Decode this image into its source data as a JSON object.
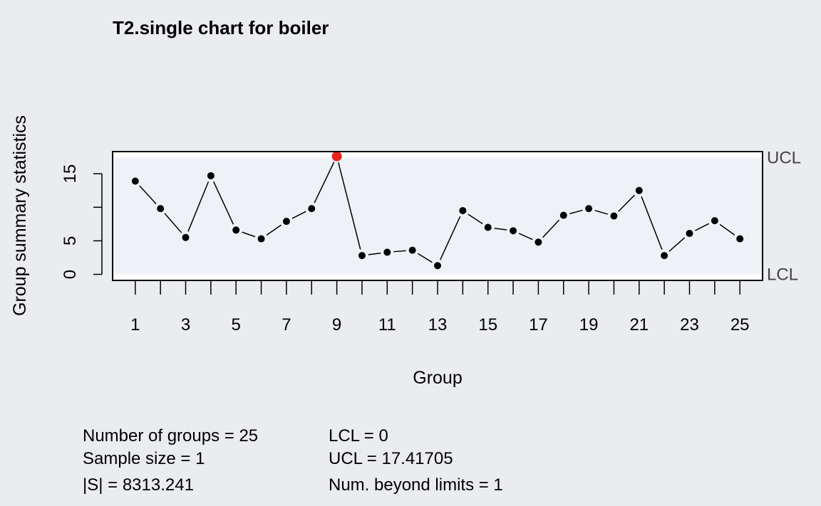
{
  "chart_data": {
    "type": "line",
    "title": "T2.single chart for boiler",
    "xlabel": "Group",
    "ylabel": "Group summary statistics",
    "x": [
      1,
      2,
      3,
      4,
      5,
      6,
      7,
      8,
      9,
      10,
      11,
      12,
      13,
      14,
      15,
      16,
      17,
      18,
      19,
      20,
      21,
      22,
      23,
      24,
      25
    ],
    "values": [
      13.9,
      9.8,
      5.5,
      14.7,
      6.6,
      5.3,
      7.9,
      9.8,
      17.6,
      2.8,
      3.3,
      3.6,
      1.3,
      9.5,
      7.0,
      6.5,
      4.8,
      8.8,
      9.8,
      8.7,
      12.5,
      2.8,
      6.1,
      8.0,
      5.3
    ],
    "x_tick_labels": [
      "1",
      "3",
      "5",
      "7",
      "9",
      "11",
      "13",
      "15",
      "17",
      "19",
      "21",
      "23",
      "25"
    ],
    "y_ticks": [
      0,
      5,
      10,
      15
    ],
    "y_tick_labels": [
      "0",
      "5",
      "",
      "15"
    ],
    "xlim": [
      0.1,
      25.9
    ],
    "ylim": [
      -0.9,
      18.3
    ],
    "limits": {
      "lcl": 0,
      "ucl": 17.41705,
      "lcl_label": "LCL",
      "ucl_label": "UCL"
    },
    "colors": {
      "background": "#ebecf0",
      "plot_background": "#eef1f6",
      "in_control": "#000000",
      "beyond_limits": "#e8231f",
      "limit_band_outside": "#ffffff"
    }
  },
  "stats": {
    "col1": [
      "Number of groups = 25",
      "Sample size = 1",
      "|S| = 8313.241"
    ],
    "col2": [
      "LCL = 0",
      "UCL = 17.41705",
      "Num. beyond limits = 1"
    ]
  }
}
